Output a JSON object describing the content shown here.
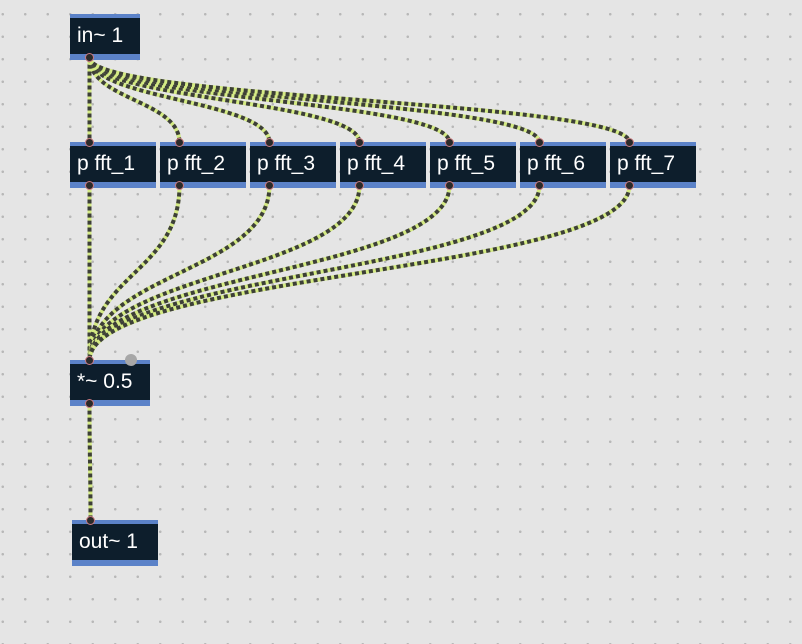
{
  "objects": {
    "in1": "in~ 1",
    "fft1": "p fft_1",
    "fft2": "p fft_2",
    "fft3": "p fft_3",
    "fft4": "p fft_4",
    "fft5": "p fft_5",
    "fft6": "p fft_6",
    "fft7": "p fft_7",
    "mul": "*~ 0.5",
    "out1": "out~ 1"
  },
  "connections": [
    [
      "in1",
      "fft1"
    ],
    [
      "in1",
      "fft2"
    ],
    [
      "in1",
      "fft3"
    ],
    [
      "in1",
      "fft4"
    ],
    [
      "in1",
      "fft5"
    ],
    [
      "in1",
      "fft6"
    ],
    [
      "in1",
      "fft7"
    ],
    [
      "fft1",
      "mul"
    ],
    [
      "fft2",
      "mul"
    ],
    [
      "fft3",
      "mul"
    ],
    [
      "fft4",
      "mul"
    ],
    [
      "fft5",
      "mul"
    ],
    [
      "fft6",
      "mul"
    ],
    [
      "fft7",
      "mul"
    ],
    [
      "mul",
      "out1"
    ]
  ],
  "colors": {
    "background": "#e5e5e5",
    "object_fill": "#0d1e2c",
    "object_border": "#5b82c8",
    "object_text": "#ffffff",
    "cord_light": "#d4ea84",
    "cord_dark": "#3d3f38"
  }
}
